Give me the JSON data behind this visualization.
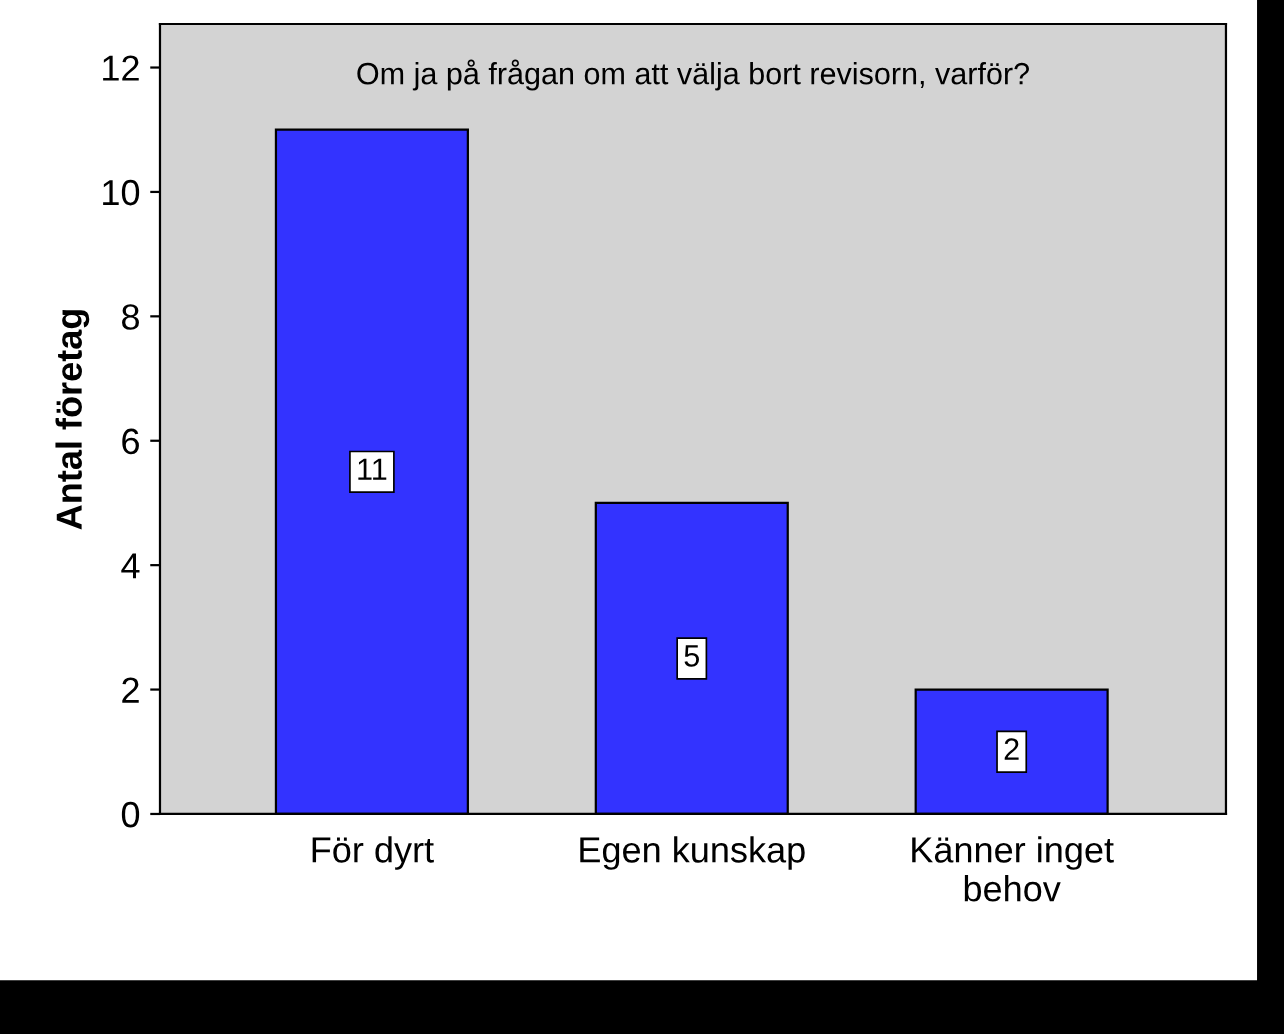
{
  "chart_data": {
    "type": "bar",
    "title": "Om ja på frågan om att välja bort revisorn, varför?",
    "ylabel": "Antal företag",
    "categories": [
      "För dyrt",
      "Egen kunskap",
      "Känner inget\nbehov"
    ],
    "values": [
      11,
      5,
      2
    ],
    "color": "#3333ff",
    "ylim": [
      0,
      12.7
    ],
    "yticks": [
      0,
      2,
      4,
      6,
      8,
      10,
      12
    ],
    "grid": false,
    "data_labels": true
  }
}
